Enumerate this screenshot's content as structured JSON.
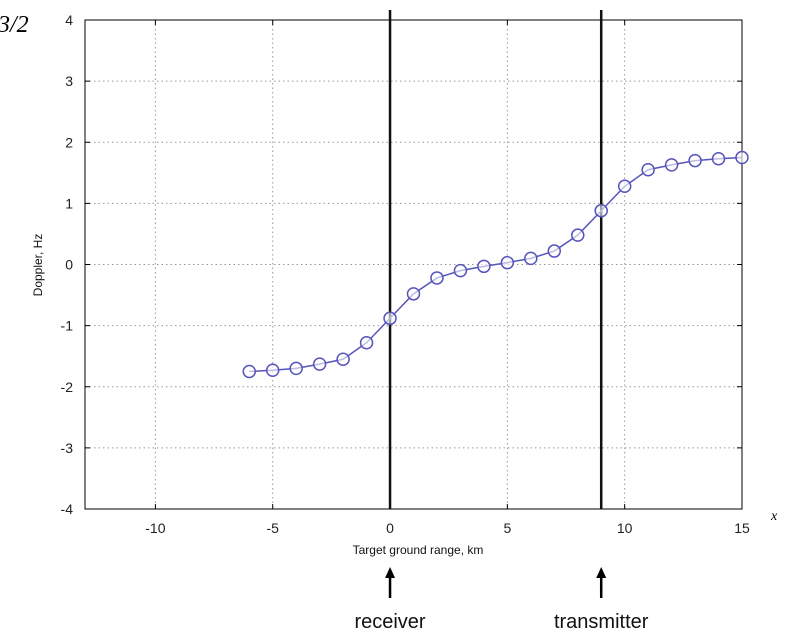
{
  "chart_data": {
    "type": "line",
    "title": "",
    "xlabel": "Target ground range, km",
    "ylabel": "Doppler, Hz",
    "xlim": [
      -13,
      15
    ],
    "ylim": [
      -4,
      4
    ],
    "x_ticks": [
      -10,
      -5,
      0,
      5,
      10,
      15
    ],
    "y_ticks": [
      -4,
      -3,
      -2,
      -1,
      0,
      1,
      2,
      3,
      4
    ],
    "grid": true,
    "series": [
      {
        "color": "#5555bb",
        "marker": "circle-open",
        "x": [
          -6,
          -5,
          -4,
          -3,
          -2,
          -1,
          0,
          1,
          2,
          3,
          4,
          5,
          6,
          7,
          8,
          9,
          10,
          11,
          12,
          13,
          14,
          15
        ],
        "y": [
          -1.75,
          -1.73,
          -1.7,
          -1.63,
          -1.55,
          -1.28,
          -0.88,
          -0.48,
          -0.22,
          -0.1,
          -0.03,
          0.03,
          0.1,
          0.22,
          0.48,
          0.88,
          1.28,
          1.55,
          1.63,
          1.7,
          1.73,
          1.75
        ]
      }
    ],
    "vertical_lines": [
      {
        "x": 0,
        "label": "receiver"
      },
      {
        "x": 9,
        "label": "transmitter"
      }
    ],
    "corner_text_top_left": "3/2",
    "corner_text_right": "x"
  }
}
